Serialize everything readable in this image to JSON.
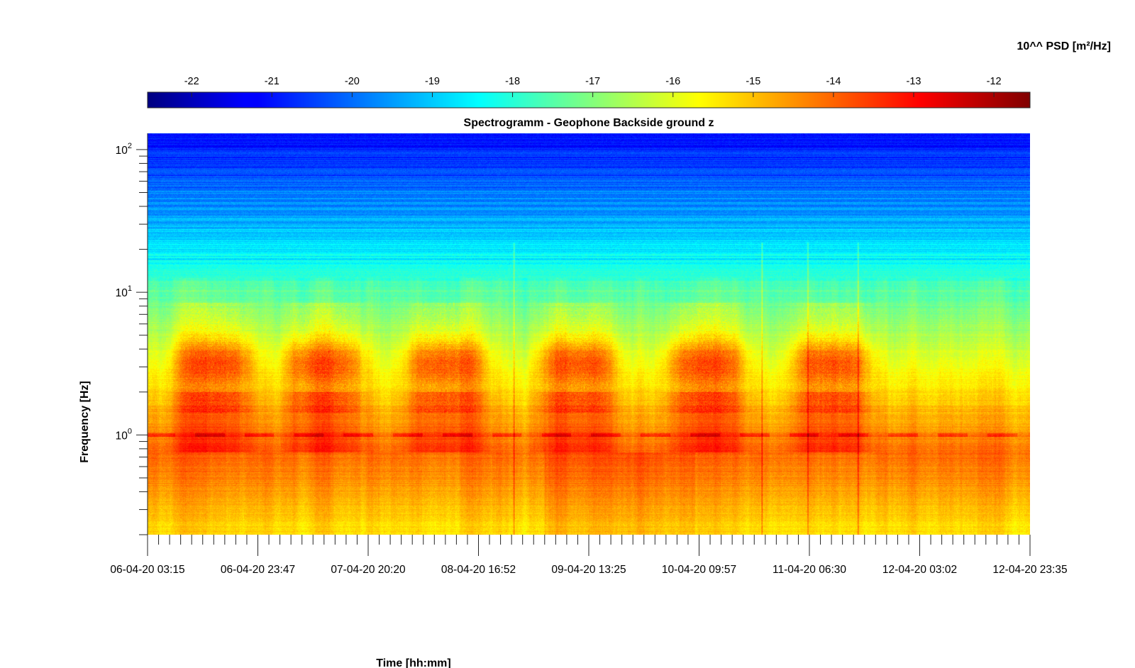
{
  "chart_data": {
    "type": "heatmap",
    "title": "Spectrogramm - Geophone Backside ground z",
    "xlabel": "Time [hh:mm]",
    "ylabel": "Frequency [Hz]",
    "colorbar_label": "10^^ PSD [m²/Hz]",
    "colormap": "jet",
    "colorbar_location": "top",
    "clim": [
      -22.55,
      -11.55
    ],
    "colorbar_ticks": [
      -22,
      -21,
      -20,
      -19,
      -18,
      -17,
      -16,
      -15,
      -14,
      -13,
      -12
    ],
    "colorbar_tick_labels": [
      "-22",
      "-21",
      "-20",
      "-19",
      "-18",
      "-17",
      "-16",
      "-15",
      "-14",
      "-13",
      "-12"
    ],
    "x_scale": "time",
    "x_tick_labels": [
      "06-04-20 03:15",
      "06-04-20 23:47",
      "07-04-20 20:20",
      "08-04-20 16:52",
      "09-04-20 13:25",
      "10-04-20 09:57",
      "11-04-20 06:30",
      "12-04-20 03:02",
      "12-04-20 23:35"
    ],
    "x_minor_ticks_per_major": 10,
    "y_scale": "log",
    "y_range_hz": [
      0.2,
      130
    ],
    "y_tick_values": [
      1,
      10,
      100
    ],
    "y_tick_labels": [
      {
        "base": "10",
        "exp": "0"
      },
      {
        "base": "10",
        "exp": "1"
      },
      {
        "base": "10",
        "exp": "2"
      }
    ],
    "features": {
      "high_frequency_level": -20.8,
      "mid_frequency_level": -17.2,
      "low_frequency_level": -13.8,
      "microseism_line_hz": 1.0,
      "daytime_activity_band_hz": [
        2,
        6
      ],
      "daytime_activity_centers": [
        "06-04-20 13:00",
        "07-04-20 13:00",
        "08-04-20 13:00",
        "09-04-20 13:00",
        "10-04-20 13:00",
        "11-04-20 13:00"
      ],
      "transient_events": [
        "08-04-20 21:00",
        "10-04-20 22:00",
        "11-04-20 06:30",
        "11-04-20 16:00"
      ]
    }
  }
}
